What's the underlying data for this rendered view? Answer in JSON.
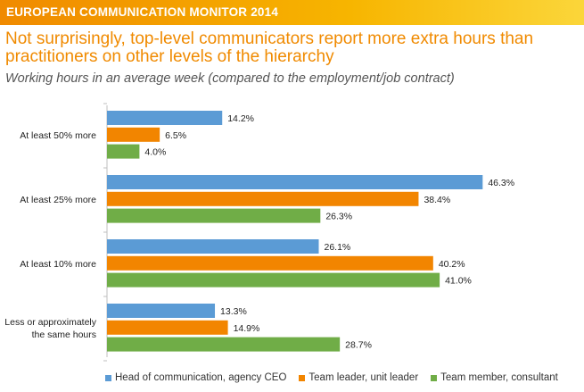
{
  "banner": {
    "title": "EUROPEAN COMMUNICATION MONITOR 2014"
  },
  "headline": "Not surprisingly, top-level communicators report more extra hours than practitioners on other levels of the hierarchy",
  "colors": {
    "head": "#5b9bd5",
    "leader": "#f28500",
    "member": "#70ad47",
    "axis": "#bfbfbf"
  },
  "chart_data": {
    "type": "bar",
    "orientation": "horizontal",
    "title": "Working hours in an average week (compared to the employment/job contract)",
    "xlabel": "",
    "ylabel": "",
    "xlim": [
      0,
      50
    ],
    "value_suffix": "%",
    "grid": false,
    "legend_position": "bottom",
    "categories": [
      [
        "At least 50% more"
      ],
      [
        "At least 25% more"
      ],
      [
        "At least 10% more"
      ],
      [
        "Less or approximately",
        "the same hours"
      ]
    ],
    "series": [
      {
        "name": "Head of communication, agency CEO",
        "color_key": "head",
        "values": [
          14.2,
          46.3,
          26.1,
          13.3
        ]
      },
      {
        "name": "Team leader, unit leader",
        "color_key": "leader",
        "values": [
          6.5,
          38.4,
          40.2,
          14.9
        ]
      },
      {
        "name": "Team member, consultant",
        "color_key": "member",
        "values": [
          4.0,
          26.3,
          41.0,
          28.7
        ]
      }
    ]
  }
}
